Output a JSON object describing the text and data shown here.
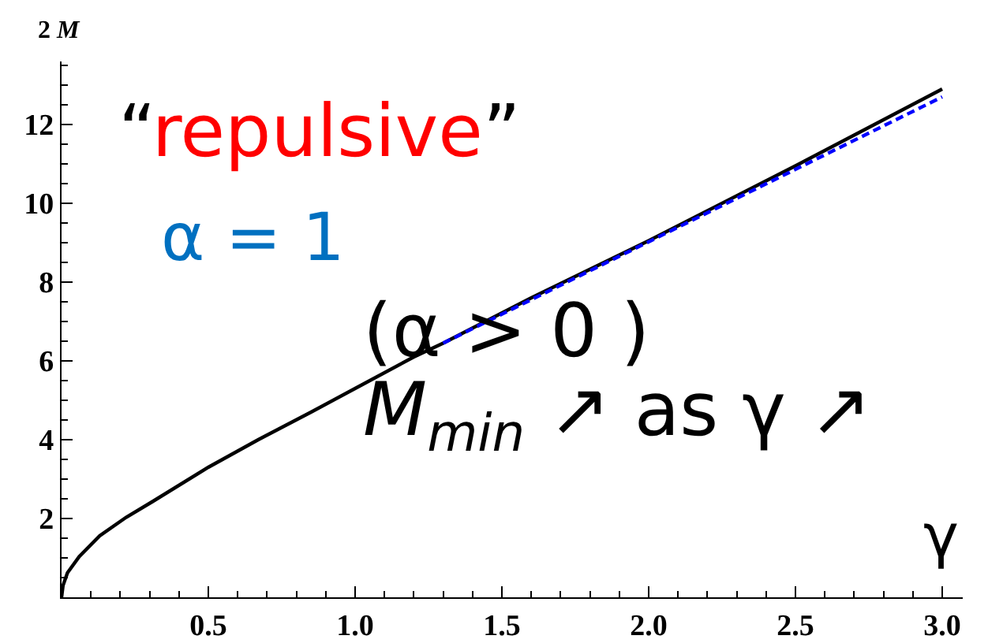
{
  "chart_data": {
    "type": "line",
    "ylabel": "2 M",
    "xlabel": "γ",
    "annotations": [
      "“repulsive”",
      "α = 1",
      "(α > 0 )",
      "M$_{min}$ ↗ as γ ↗"
    ],
    "series": [
      {
        "color": "#000000",
        "line_style": "solid",
        "x": [
          0,
          0.005,
          0.02,
          0.06,
          0.13,
          0.22,
          0.31,
          0.5,
          0.67,
          0.85,
          1.0,
          1.2,
          1.3,
          1.6,
          2.0,
          2.5,
          3.0
        ],
        "values": [
          0,
          0.3,
          0.62,
          1.03,
          1.56,
          2.03,
          2.43,
          3.3,
          4.0,
          4.7,
          5.3,
          6.1,
          6.45,
          7.6,
          9.05,
          10.95,
          12.9
        ]
      },
      {
        "color": "#0000ff",
        "line_style": "dashed",
        "x": [
          1.3,
          3.0
        ],
        "values": [
          6.45,
          12.7
        ]
      }
    ],
    "xlim": [
      0,
      3.07
    ],
    "ylim": [
      0,
      13.6
    ],
    "xticks": [
      {
        "value": 0.1,
        "label": null
      },
      {
        "value": 0.2,
        "label": null
      },
      {
        "value": 0.3,
        "label": null
      },
      {
        "value": 0.4,
        "label": null
      },
      0.5,
      {
        "value": 0.6,
        "label": null
      },
      {
        "value": 0.7,
        "label": null
      },
      {
        "value": 0.8,
        "label": null
      },
      {
        "value": 0.9,
        "label": null
      },
      {
        "value": 1,
        "label": "1.0"
      },
      {
        "value": 1.1,
        "label": null
      },
      {
        "value": 1.2,
        "label": null
      },
      {
        "value": 1.3,
        "label": null
      },
      {
        "value": 1.4,
        "label": null
      },
      1.5,
      {
        "value": 1.6,
        "label": null
      },
      {
        "value": 1.7,
        "label": null
      },
      {
        "value": 1.8,
        "label": null
      },
      {
        "value": 1.9,
        "label": null
      },
      {
        "value": 2,
        "label": "2.0"
      },
      {
        "value": 2.1,
        "label": null
      },
      {
        "value": 2.2,
        "label": null
      },
      {
        "value": 2.3,
        "label": null
      },
      {
        "value": 2.4,
        "label": null
      },
      2.5,
      {
        "value": 2.6,
        "label": null
      },
      {
        "value": 2.7,
        "label": null
      },
      {
        "value": 2.8,
        "label": null
      },
      {
        "value": 2.9,
        "label": null
      },
      {
        "value": 3,
        "label": "3.0"
      }
    ],
    "yticks": [
      {
        "value": 0.5,
        "label": null
      },
      {
        "value": 1,
        "label": null
      },
      {
        "value": 1.5,
        "label": null
      },
      2,
      {
        "value": 2.5,
        "label": null
      },
      {
        "value": 3,
        "label": null
      },
      {
        "value": 3.5,
        "label": null
      },
      4,
      {
        "value": 4.5,
        "label": null
      },
      {
        "value": 5,
        "label": null
      },
      {
        "value": 5.5,
        "label": null
      },
      6,
      {
        "value": 6.5,
        "label": null
      },
      {
        "value": 7,
        "label": null
      },
      {
        "value": 7.5,
        "label": null
      },
      8,
      {
        "value": 8.5,
        "label": null
      },
      {
        "value": 9,
        "label": null
      },
      {
        "value": 9.5,
        "label": null
      },
      10,
      {
        "value": 10.5,
        "label": null
      },
      {
        "value": 11,
        "label": null
      },
      {
        "value": 11.5,
        "label": null
      },
      12,
      {
        "value": 12.5,
        "label": null
      },
      {
        "value": 13,
        "label": null
      },
      {
        "value": 13.5,
        "label": null
      }
    ]
  }
}
